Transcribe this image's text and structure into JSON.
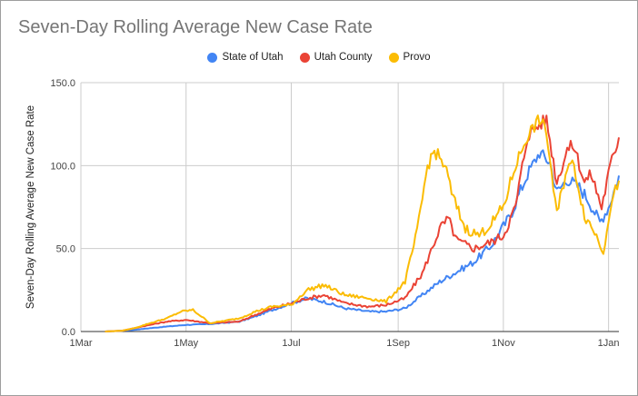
{
  "title": "Seven-Day Rolling Average New Case Rate",
  "legend": [
    {
      "name": "State of Utah",
      "color": "#4285f4"
    },
    {
      "name": "Utah County",
      "color": "#ea4335"
    },
    {
      "name": "Provo",
      "color": "#fbbc04"
    }
  ],
  "chart_data": {
    "type": "line",
    "title": "Seven-Day Rolling Average New Case Rate",
    "ylabel": "Seven-Day Rolling Average New Case Rate",
    "xlabel": "",
    "ylim": [
      0,
      150
    ],
    "yticks": [
      "0.0",
      "50.0",
      "100.0",
      "150.0"
    ],
    "xticks": [
      "1Mar",
      "1May",
      "1Jul",
      "1Sep",
      "1Nov",
      "1Jan"
    ],
    "xrange": [
      "2020-03-01",
      "2021-01-07"
    ],
    "grid": true,
    "legend_position": "top",
    "series": [
      {
        "name": "State of Utah",
        "color": "#4285f4",
        "points": [
          [
            "2020-03-15",
            0
          ],
          [
            "2020-03-25",
            0.5
          ],
          [
            "2020-04-01",
            1
          ],
          [
            "2020-04-10",
            2
          ],
          [
            "2020-04-20",
            3
          ],
          [
            "2020-05-01",
            4
          ],
          [
            "2020-05-15",
            4.5
          ],
          [
            "2020-06-01",
            6
          ],
          [
            "2020-06-10",
            9
          ],
          [
            "2020-06-20",
            13
          ],
          [
            "2020-07-01",
            17
          ],
          [
            "2020-07-10",
            20
          ],
          [
            "2020-07-20",
            18
          ],
          [
            "2020-08-01",
            14
          ],
          [
            "2020-08-15",
            12
          ],
          [
            "2020-08-25",
            12
          ],
          [
            "2020-09-05",
            14
          ],
          [
            "2020-09-15",
            22
          ],
          [
            "2020-09-25",
            30
          ],
          [
            "2020-10-05",
            36
          ],
          [
            "2020-10-15",
            42
          ],
          [
            "2020-10-25",
            52
          ],
          [
            "2020-11-05",
            70
          ],
          [
            "2020-11-15",
            95
          ],
          [
            "2020-11-22",
            108
          ],
          [
            "2020-11-28",
            102
          ],
          [
            "2020-12-02",
            84
          ],
          [
            "2020-12-08",
            92
          ],
          [
            "2020-12-15",
            87
          ],
          [
            "2020-12-20",
            80
          ],
          [
            "2020-12-27",
            66
          ],
          [
            "2021-01-01",
            75
          ],
          [
            "2021-01-07",
            94
          ]
        ]
      },
      {
        "name": "Utah County",
        "color": "#ea4335",
        "points": [
          [
            "2020-03-15",
            0
          ],
          [
            "2020-03-25",
            0.5
          ],
          [
            "2020-04-01",
            2
          ],
          [
            "2020-04-10",
            4
          ],
          [
            "2020-04-20",
            6
          ],
          [
            "2020-05-01",
            7
          ],
          [
            "2020-05-15",
            5
          ],
          [
            "2020-06-01",
            6
          ],
          [
            "2020-06-10",
            10
          ],
          [
            "2020-06-20",
            14
          ],
          [
            "2020-07-01",
            17
          ],
          [
            "2020-07-10",
            20
          ],
          [
            "2020-07-20",
            22
          ],
          [
            "2020-08-01",
            17
          ],
          [
            "2020-08-15",
            15
          ],
          [
            "2020-08-25",
            16
          ],
          [
            "2020-09-05",
            20
          ],
          [
            "2020-09-15",
            35
          ],
          [
            "2020-09-25",
            62
          ],
          [
            "2020-09-30",
            68
          ],
          [
            "2020-10-05",
            55
          ],
          [
            "2020-10-15",
            50
          ],
          [
            "2020-10-25",
            54
          ],
          [
            "2020-11-01",
            58
          ],
          [
            "2020-11-08",
            75
          ],
          [
            "2020-11-15",
            118
          ],
          [
            "2020-11-22",
            125
          ],
          [
            "2020-11-26",
            128
          ],
          [
            "2020-12-02",
            90
          ],
          [
            "2020-12-08",
            110
          ],
          [
            "2020-12-12",
            112
          ],
          [
            "2020-12-18",
            90
          ],
          [
            "2020-12-22",
            95
          ],
          [
            "2020-12-28",
            75
          ],
          [
            "2021-01-02",
            100
          ],
          [
            "2021-01-07",
            117
          ]
        ]
      },
      {
        "name": "Provo",
        "color": "#fbbc04",
        "points": [
          [
            "2020-03-15",
            0
          ],
          [
            "2020-03-25",
            0.5
          ],
          [
            "2020-04-01",
            2
          ],
          [
            "2020-04-10",
            5
          ],
          [
            "2020-04-20",
            8
          ],
          [
            "2020-04-28",
            12
          ],
          [
            "2020-05-05",
            13
          ],
          [
            "2020-05-15",
            5
          ],
          [
            "2020-06-01",
            8
          ],
          [
            "2020-06-10",
            12
          ],
          [
            "2020-06-20",
            15
          ],
          [
            "2020-07-01",
            16
          ],
          [
            "2020-07-10",
            25
          ],
          [
            "2020-07-20",
            28
          ],
          [
            "2020-08-01",
            22
          ],
          [
            "2020-08-15",
            20
          ],
          [
            "2020-08-25",
            18
          ],
          [
            "2020-09-05",
            30
          ],
          [
            "2020-09-12",
            60
          ],
          [
            "2020-09-18",
            100
          ],
          [
            "2020-09-22",
            109
          ],
          [
            "2020-09-28",
            100
          ],
          [
            "2020-10-03",
            80
          ],
          [
            "2020-10-10",
            62
          ],
          [
            "2020-10-18",
            58
          ],
          [
            "2020-10-25",
            65
          ],
          [
            "2020-11-01",
            75
          ],
          [
            "2020-11-08",
            100
          ],
          [
            "2020-11-15",
            118
          ],
          [
            "2020-11-22",
            128
          ],
          [
            "2020-11-26",
            120
          ],
          [
            "2020-12-02",
            70
          ],
          [
            "2020-12-08",
            100
          ],
          [
            "2020-12-12",
            100
          ],
          [
            "2020-12-18",
            70
          ],
          [
            "2020-12-24",
            60
          ],
          [
            "2020-12-29",
            48
          ],
          [
            "2021-01-02",
            75
          ],
          [
            "2021-01-07",
            91
          ]
        ]
      }
    ]
  }
}
